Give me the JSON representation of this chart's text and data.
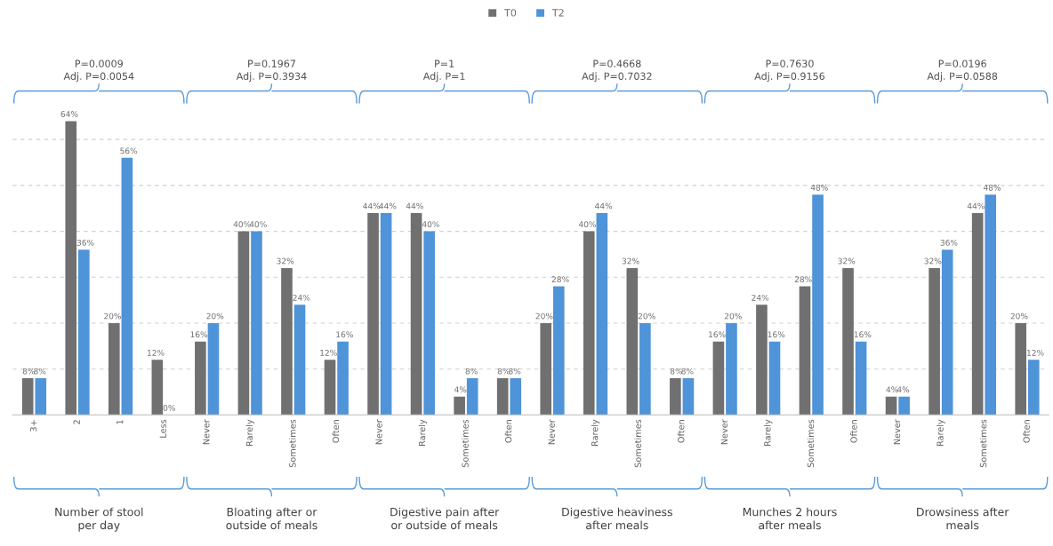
{
  "chart_data": {
    "type": "bar",
    "categories": [
      "3+",
      "2",
      "1",
      "Less",
      "Never",
      "Rarely",
      "Sometimes",
      "Often",
      "Never",
      "Rarely",
      "Sometimes",
      "Often",
      "Never",
      "Rarely",
      "Sometimes",
      "Often",
      "Never",
      "Rarely",
      "Sometimes",
      "Often",
      "Never",
      "Rarely",
      "Sometimes",
      "Often"
    ],
    "series": [
      {
        "name": "T0",
        "color": "#707070",
        "values": [
          8,
          64,
          20,
          12,
          16,
          40,
          32,
          12,
          44,
          44,
          4,
          8,
          20,
          40,
          32,
          8,
          16,
          24,
          28,
          32,
          4,
          32,
          44,
          20
        ],
        "value_labels": [
          "8%",
          "64%",
          "20%",
          "12%",
          "16%",
          "40%",
          "32%",
          "12%",
          "44%",
          "44%",
          "4%",
          "8%",
          "20%",
          "40%",
          "32%",
          "8%",
          "16%",
          "24%",
          "28%",
          "32%",
          "4%",
          "32%",
          "44%",
          "20%"
        ]
      },
      {
        "name": "T2",
        "color": "#4f93d8",
        "values": [
          8,
          36,
          56,
          0,
          20,
          40,
          24,
          16,
          44,
          40,
          8,
          8,
          28,
          44,
          20,
          8,
          20,
          16,
          48,
          16,
          4,
          36,
          48,
          12
        ],
        "value_labels": [
          "8%",
          "36%",
          "56%",
          "0%",
          "20%",
          "40%",
          "24%",
          "16%",
          "44%",
          "40%",
          "8%",
          "8%",
          "28%",
          "44%",
          "20%",
          "8%",
          "20%",
          "16%",
          "48%",
          "16%",
          "4%",
          "36%",
          "48%",
          "12%"
        ]
      }
    ],
    "yticks": [
      {
        "value": 10,
        "label": null
      },
      {
        "value": 20,
        "label": null
      },
      {
        "value": 30,
        "label": null
      },
      {
        "value": 40,
        "label": null
      },
      {
        "value": 50,
        "label": null
      },
      {
        "value": 60,
        "label": null
      }
    ],
    "tick_labels": "x",
    "grid": "y",
    "legend": "top",
    "annotations": [
      "Number of stool\nper day",
      "Bloating after or\noutside of meals",
      "Digestive pain after\nor outside of meals",
      "Digestive heaviness\nafter meals",
      "Munches 2 hours\nafter meals",
      "Drowsiness after\nmeals",
      "P=0.0009\nAdj. P=0.0054",
      "P=0.1967\nAdj. P=0.3934",
      "P=1\nAdj. P=1",
      "P=0.4668\nAdj. P=0.7032",
      "P=0.7630\nAdj. P=0.9156",
      "P=0.0196\nAdj. P=0.0588"
    ]
  }
}
